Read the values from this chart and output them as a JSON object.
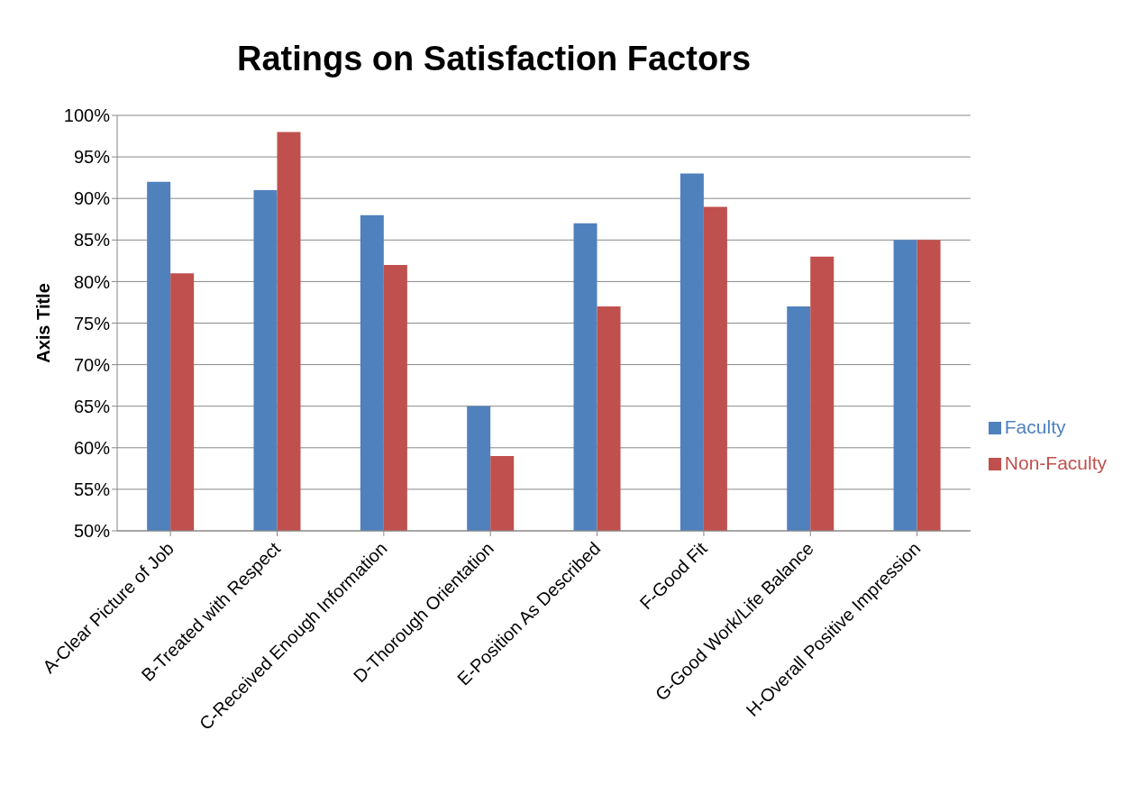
{
  "chart_data": {
    "type": "bar",
    "title": "Ratings on Satisfaction Factors",
    "ylabel": "Axis Title",
    "categories": [
      "A-Clear Picture of Job",
      "B-Treated with Respect",
      "C-Received Enough Information",
      "D-Thorough Orientation",
      "E-Position As Described",
      "F-Good Fit",
      "G-Good Work/Life Balance",
      "H-Overall Positive Impression"
    ],
    "series": [
      {
        "name": "Faculty",
        "color": "#4f81bd",
        "values": [
          92,
          91,
          88,
          65,
          87,
          93,
          77,
          85
        ]
      },
      {
        "name": "Non-Faculty",
        "color": "#c0504d",
        "values": [
          81,
          98,
          82,
          59,
          77,
          89,
          83,
          85
        ]
      }
    ],
    "ylim": [
      50,
      100
    ],
    "yticks": [
      {
        "value": 50,
        "label": "50%"
      },
      {
        "value": 55,
        "label": "55%"
      },
      {
        "value": 60,
        "label": "60%"
      },
      {
        "value": 65,
        "label": "65%"
      },
      {
        "value": 70,
        "label": "70%"
      },
      {
        "value": 75,
        "label": "75%"
      },
      {
        "value": 80,
        "label": "80%"
      },
      {
        "value": 85,
        "label": "85%"
      },
      {
        "value": 90,
        "label": "90%"
      },
      {
        "value": 95,
        "label": "95%"
      },
      {
        "value": 100,
        "label": "100%"
      }
    ],
    "grid": "y",
    "legend": "right"
  }
}
